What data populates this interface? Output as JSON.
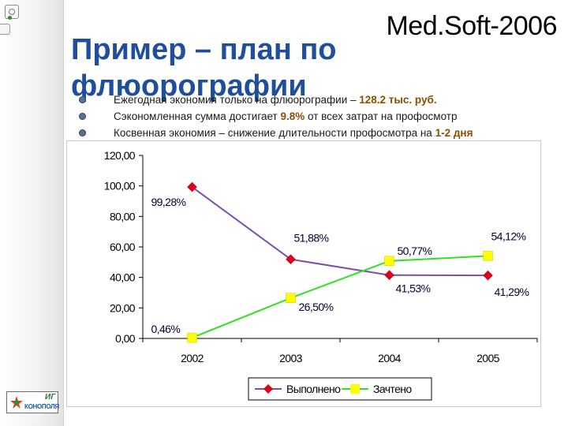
{
  "brand": "Med.Soft-2006",
  "title": "Пример – план по флюорографии",
  "logo": {
    "line1": "ИГ",
    "line2": "КОНОПОЛЯ"
  },
  "bullets": [
    {
      "before": "Ежегодная экономия только на флюорографии – ",
      "value": "128.2 тыс. руб.",
      "after": ""
    },
    {
      "before": "Сэкономленная сумма достигает ",
      "value": "9.8%",
      "after": " от всех затрат на профосмотр"
    },
    {
      "before": "Косвенная экономия – снижение длительности профосмотра на ",
      "value": "1-2 дня",
      "after": ""
    }
  ],
  "colors": {
    "title": "#1f4e9a",
    "series1": "#7a4fb0",
    "series1_marker": "#e0001a",
    "series2": "#33e01e",
    "series2_marker": "#ffff00"
  },
  "chart_data": {
    "type": "line",
    "x": [
      "2002",
      "2003",
      "2004",
      "2005"
    ],
    "ylim": [
      0,
      120
    ],
    "yticks": [
      "0,00",
      "20,00",
      "40,00",
      "60,00",
      "80,00",
      "100,00",
      "120,00"
    ],
    "grid": false,
    "legend": "bottom",
    "series": [
      {
        "name": "Выполнено",
        "values": [
          99.28,
          51.88,
          41.53,
          41.29
        ],
        "labels": [
          "99,28%",
          "51,88%",
          "41,53%",
          "41,29%"
        ]
      },
      {
        "name": "Зачтено",
        "values": [
          0.46,
          26.5,
          50.77,
          54.12
        ],
        "labels": [
          "0,46%",
          "26,50%",
          "50,77%",
          "54,12%"
        ]
      }
    ]
  }
}
